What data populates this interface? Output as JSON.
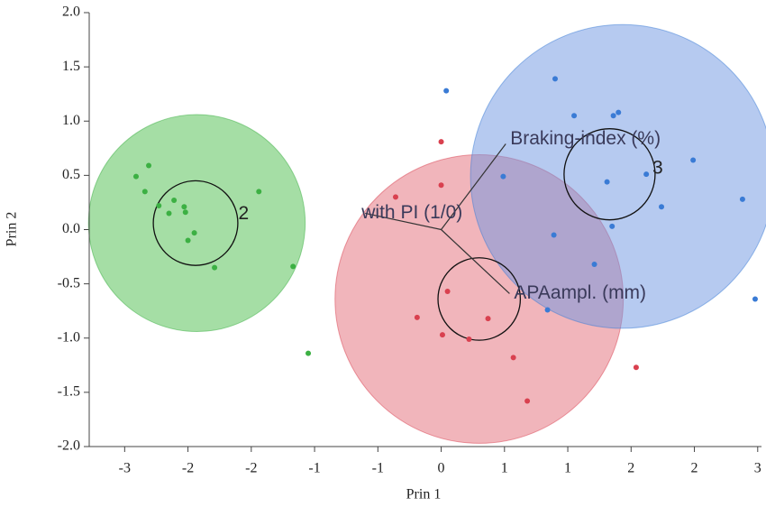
{
  "chart_data": {
    "type": "scatter",
    "xlabel": "Prin 1",
    "ylabel": "Prin 2",
    "xlim": [
      -2.78,
      2.53
    ],
    "ylim": [
      -2.0,
      2.0
    ],
    "xticks": [
      {
        "value": -2.5,
        "label": "-3"
      },
      {
        "value": -2,
        "label": "-2"
      },
      {
        "value": -1.5,
        "label": "-2"
      },
      {
        "value": -1,
        "label": "-1"
      },
      {
        "value": -0.5,
        "label": "-1"
      },
      0,
      {
        "value": 0.5,
        "label": "1"
      },
      1,
      {
        "value": 1.5,
        "label": "2"
      },
      2,
      {
        "value": 2.5,
        "label": "3"
      }
    ],
    "yticks": [
      {
        "value": -2,
        "label": "-2.0"
      },
      {
        "value": -1.5,
        "label": "-1.5"
      },
      {
        "value": -1,
        "label": "-1.0"
      },
      {
        "value": -0.5,
        "label": "-0.5"
      },
      {
        "value": 0,
        "label": "0.0"
      },
      {
        "value": 0.5,
        "label": "0.5"
      },
      {
        "value": 1,
        "label": "1.0"
      },
      {
        "value": 1.5,
        "label": "1.5"
      },
      {
        "value": 2,
        "label": "2.0"
      }
    ],
    "series": [
      {
        "color": "#3cb043",
        "fill": "rgba(76,190,76,0.5)",
        "label": "2",
        "label_x": -1.56,
        "label_y": 0.14,
        "circle": {
          "x": -1.93,
          "y": 0.06,
          "r": 1.0
        },
        "inner": {
          "x": -1.94,
          "y": 0.06,
          "r": 0.39
        },
        "x": [
          -2.41,
          -2.31,
          -2.34,
          -2.23,
          -2.15,
          -2.11,
          -2.03,
          -2.02,
          -1.95,
          -2.0,
          -1.79,
          -1.44,
          -1.17,
          -1.05
        ],
        "y": [
          0.49,
          0.59,
          0.35,
          0.22,
          0.15,
          0.27,
          0.21,
          0.16,
          -0.03,
          -0.1,
          -0.35,
          0.35,
          -0.34,
          -1.14
        ]
      },
      {
        "color": "#d9404f",
        "fill": "rgba(225,90,105,0.45)",
        "circle": {
          "x": 0.3,
          "y": -0.64,
          "r": 1.33
        },
        "inner": {
          "x": 0.3,
          "y": -0.64,
          "r": 0.38
        },
        "x": [
          0,
          -0.36,
          0,
          0.05,
          -0.19,
          0.01,
          0.22,
          0.37,
          0.57,
          0.68,
          1.54
        ],
        "y": [
          0.81,
          0.3,
          0.41,
          -0.57,
          -0.81,
          -0.97,
          -1.01,
          -0.82,
          -1.18,
          -1.58,
          -1.27
        ]
      },
      {
        "color": "#3a7bd5",
        "fill": "rgba(110,150,225,0.5)",
        "label": "3",
        "label_x": 1.71,
        "label_y": 0.56,
        "circle": {
          "x": 1.43,
          "y": 0.49,
          "r": 1.4
        },
        "inner": {
          "x": 1.33,
          "y": 0.51,
          "r": 0.42
        },
        "x": [
          0.04,
          0.9,
          1.05,
          1.36,
          1.4,
          0.49,
          1.31,
          1.62,
          1.99,
          2.38,
          1.74,
          1.35,
          0.89,
          1.21,
          0.84,
          2.48
        ],
        "y": [
          1.28,
          1.39,
          1.05,
          1.05,
          1.08,
          0.49,
          0.44,
          0.51,
          0.64,
          0.28,
          0.21,
          0.03,
          -0.05,
          -0.32,
          -0.74,
          -0.64
        ]
      }
    ],
    "rays": [
      {
        "label": "Braking-index (%)",
        "x": 0.51,
        "y": 0.79
      },
      {
        "label": "with PI (1/0)",
        "x": -0.6,
        "y": 0.15
      },
      {
        "label": "APAampl. (mm)",
        "x": 0.54,
        "y": -0.59
      }
    ]
  }
}
